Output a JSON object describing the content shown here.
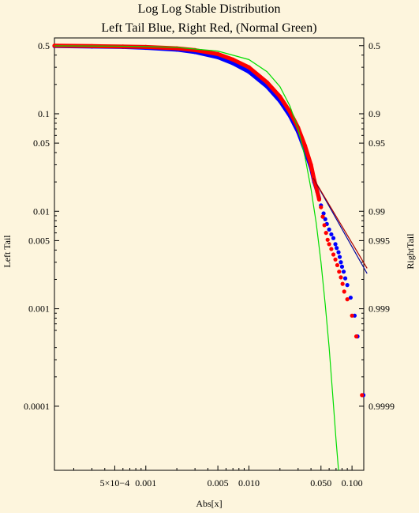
{
  "chart_data": {
    "type": "scatter",
    "title": [
      "Log Log Stable Distribution",
      "Left Tail Blue, Right Red, (Normal Green)"
    ],
    "xlabel": "Abs[x]",
    "ylabel_left": "Left Tail",
    "ylabel_right": "RightTail",
    "x_scale": "log",
    "y_scale": "log",
    "xlim": [
      0.00013,
      0.13
    ],
    "ylim": [
      2.2e-05,
      0.6
    ],
    "grid": false,
    "x_ticks": [
      {
        "value": 0.0005,
        "label": "5×10−4"
      },
      {
        "value": 0.001,
        "label": "0.001"
      },
      {
        "value": 0.005,
        "label": "0.005"
      },
      {
        "value": 0.01,
        "label": "0.010"
      },
      {
        "value": 0.05,
        "label": "0.050"
      },
      {
        "value": 0.1,
        "label": "0.100"
      }
    ],
    "y_ticks_left": [
      {
        "value": 0.5,
        "label": "0.5"
      },
      {
        "value": 0.1,
        "label": "0.1"
      },
      {
        "value": 0.05,
        "label": "0.05"
      },
      {
        "value": 0.01,
        "label": "0.01"
      },
      {
        "value": 0.005,
        "label": "0.005"
      },
      {
        "value": 0.001,
        "label": "0.001"
      },
      {
        "value": 0.0001,
        "label": "0.0001"
      }
    ],
    "y_ticks_right": [
      {
        "value": 0.5,
        "label": "0.5"
      },
      {
        "value": 0.1,
        "label": "0.9"
      },
      {
        "value": 0.05,
        "label": "0.95"
      },
      {
        "value": 0.01,
        "label": "0.99"
      },
      {
        "value": 0.005,
        "label": "0.995"
      },
      {
        "value": 0.001,
        "label": "0.999"
      },
      {
        "value": 0.0001,
        "label": "0.9999"
      }
    ],
    "series": [
      {
        "kind": "points",
        "color": "#0000ff",
        "points": [
          [
            0.00013,
            0.495
          ],
          [
            0.0003,
            0.49
          ],
          [
            0.0006,
            0.485
          ],
          [
            0.001,
            0.475
          ],
          [
            0.002,
            0.455
          ],
          [
            0.003,
            0.43
          ],
          [
            0.005,
            0.38
          ],
          [
            0.007,
            0.33
          ],
          [
            0.01,
            0.27
          ],
          [
            0.015,
            0.19
          ],
          [
            0.02,
            0.135
          ],
          [
            0.025,
            0.095
          ],
          [
            0.03,
            0.065
          ],
          [
            0.035,
            0.042
          ],
          [
            0.04,
            0.028
          ],
          [
            0.043,
            0.02
          ],
          [
            0.046,
            0.016
          ],
          [
            0.048,
            0.0135
          ],
          [
            0.05,
            0.0115
          ],
          [
            0.053,
            0.0095
          ],
          [
            0.055,
            0.0083
          ],
          [
            0.057,
            0.0074
          ],
          [
            0.06,
            0.0065
          ],
          [
            0.063,
            0.0058
          ],
          [
            0.066,
            0.0053
          ],
          [
            0.069,
            0.0046
          ],
          [
            0.071,
            0.0042
          ],
          [
            0.074,
            0.0038
          ],
          [
            0.076,
            0.0034
          ],
          [
            0.078,
            0.003
          ],
          [
            0.08,
            0.0027
          ],
          [
            0.083,
            0.0024
          ],
          [
            0.086,
            0.00205
          ],
          [
            0.09,
            0.00175
          ],
          [
            0.097,
            0.0013
          ],
          [
            0.106,
            0.00085
          ],
          [
            0.113,
            0.00052
          ],
          [
            0.129,
            0.00013
          ]
        ]
      },
      {
        "kind": "points",
        "color": "#ff0000",
        "points": [
          [
            0.00013,
            0.5
          ],
          [
            0.0003,
            0.495
          ],
          [
            0.0006,
            0.49
          ],
          [
            0.001,
            0.485
          ],
          [
            0.002,
            0.47
          ],
          [
            0.003,
            0.45
          ],
          [
            0.005,
            0.41
          ],
          [
            0.007,
            0.36
          ],
          [
            0.01,
            0.3
          ],
          [
            0.015,
            0.21
          ],
          [
            0.02,
            0.15
          ],
          [
            0.025,
            0.105
          ],
          [
            0.03,
            0.072
          ],
          [
            0.035,
            0.047
          ],
          [
            0.04,
            0.03
          ],
          [
            0.043,
            0.021
          ],
          [
            0.046,
            0.016
          ],
          [
            0.048,
            0.0132
          ],
          [
            0.05,
            0.011
          ],
          [
            0.052,
            0.0088
          ],
          [
            0.054,
            0.0072
          ],
          [
            0.056,
            0.006
          ],
          [
            0.058,
            0.0051
          ],
          [
            0.06,
            0.0046
          ],
          [
            0.063,
            0.0041
          ],
          [
            0.066,
            0.0036
          ],
          [
            0.069,
            0.0032
          ],
          [
            0.072,
            0.0028
          ],
          [
            0.075,
            0.0024
          ],
          [
            0.078,
            0.0021
          ],
          [
            0.081,
            0.0018
          ],
          [
            0.084,
            0.0015
          ],
          [
            0.09,
            0.00125
          ],
          [
            0.1,
            0.00085
          ],
          [
            0.11,
            0.00052
          ],
          [
            0.125,
            0.00013
          ]
        ]
      },
      {
        "kind": "line",
        "color": "#00dd00",
        "points": [
          [
            0.00013,
            0.498
          ],
          [
            0.0005,
            0.495
          ],
          [
            0.001,
            0.49
          ],
          [
            0.002,
            0.48
          ],
          [
            0.005,
            0.44
          ],
          [
            0.01,
            0.36
          ],
          [
            0.015,
            0.27
          ],
          [
            0.02,
            0.19
          ],
          [
            0.025,
            0.12
          ],
          [
            0.03,
            0.07
          ],
          [
            0.035,
            0.036
          ],
          [
            0.04,
            0.017
          ],
          [
            0.045,
            0.0075
          ],
          [
            0.05,
            0.003
          ],
          [
            0.055,
            0.0011
          ],
          [
            0.06,
            0.0004
          ],
          [
            0.065,
            0.00013
          ],
          [
            0.07,
            4.5e-05
          ],
          [
            0.074,
            2.2e-05
          ]
        ]
      },
      {
        "kind": "line",
        "color": "#000099",
        "points": [
          [
            0.042,
            0.022
          ],
          [
            0.14,
            0.0023
          ]
        ]
      },
      {
        "kind": "line",
        "color": "#aa0000",
        "points": [
          [
            0.042,
            0.022
          ],
          [
            0.14,
            0.0026
          ]
        ]
      }
    ]
  }
}
